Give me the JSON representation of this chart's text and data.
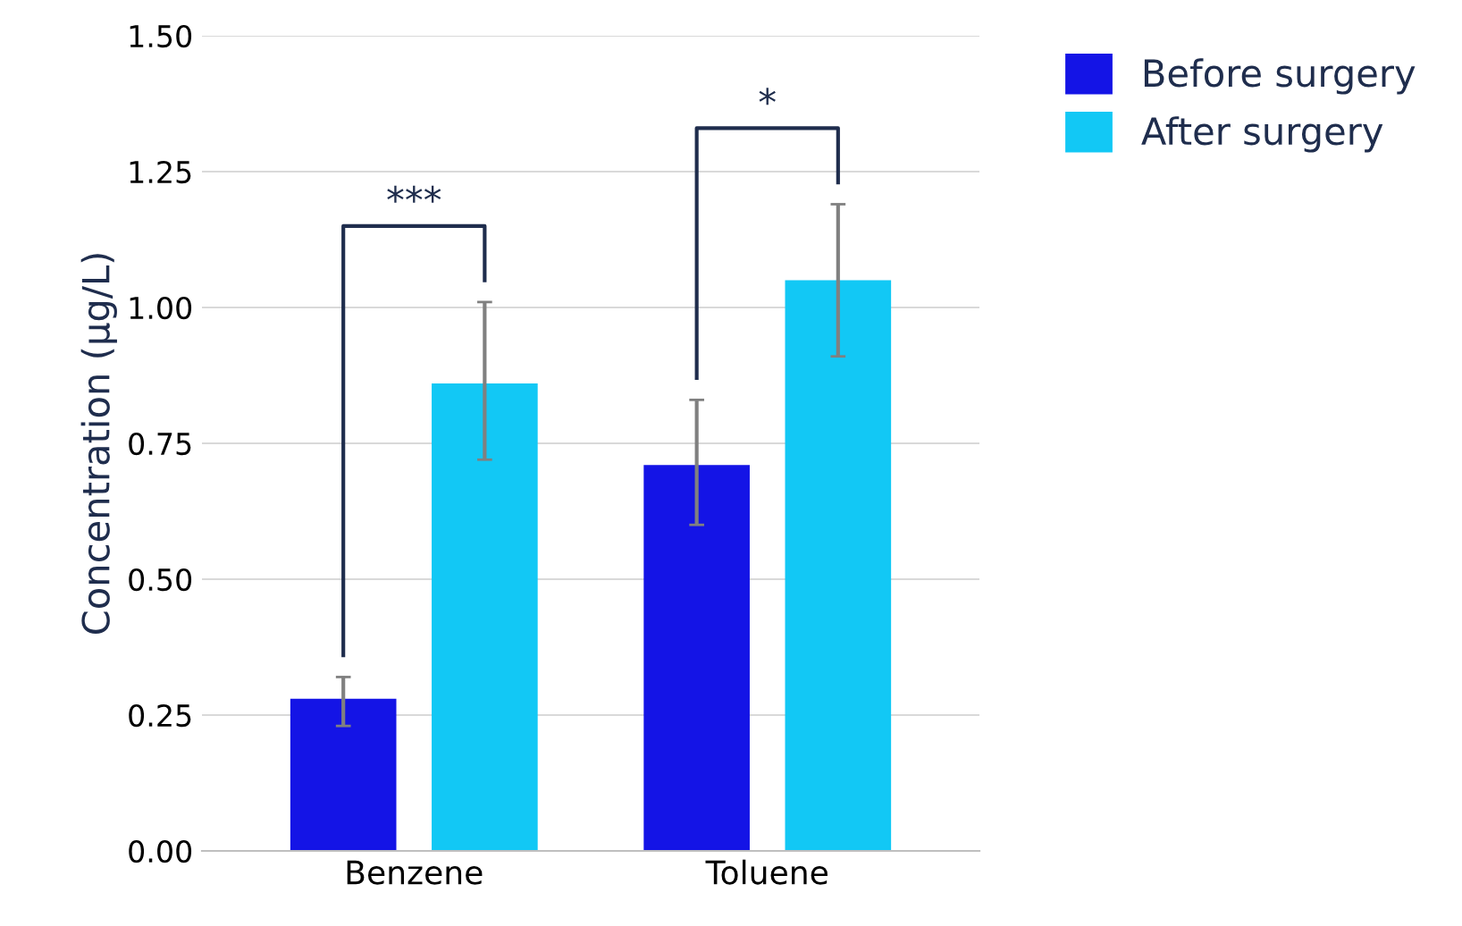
{
  "chart_data": {
    "type": "bar",
    "ylabel": "Concentration (µg/L)",
    "categories": [
      "Benzene",
      "Toluene"
    ],
    "series": [
      {
        "name": "Before surgery",
        "color": "#1414e6",
        "values": [
          0.28,
          0.71
        ],
        "errors": [
          [
            0.23,
            0.32
          ],
          [
            0.6,
            0.83
          ]
        ]
      },
      {
        "name": "After surgery",
        "color": "#12c8f5",
        "values": [
          0.86,
          1.05
        ],
        "errors": [
          [
            0.72,
            1.01
          ],
          [
            0.91,
            1.19
          ]
        ]
      }
    ],
    "ylim": [
      0,
      1.5
    ],
    "yticks": [
      {
        "value": 0,
        "label": "0.00"
      },
      {
        "value": 0.25,
        "label": "0.25"
      },
      {
        "value": 0.5,
        "label": "0.50"
      },
      {
        "value": 0.75,
        "label": "0.75"
      },
      {
        "value": 1.0,
        "label": "1.00"
      },
      {
        "value": 1.25,
        "label": "1.25"
      },
      {
        "value": 1.5,
        "label": "1.50"
      }
    ],
    "grid": "y",
    "legend": "top right",
    "annotations": [
      "***",
      "*"
    ]
  }
}
